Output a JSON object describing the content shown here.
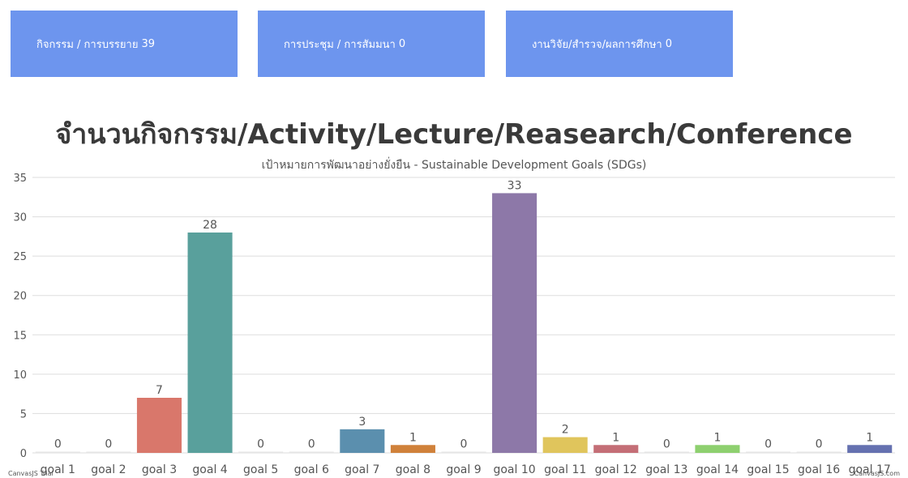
{
  "cards": [
    {
      "label": "กิจกรรม / การบรรยาย",
      "count": "39"
    },
    {
      "label": "การประชุม / การสัมมนา",
      "count": "0"
    },
    {
      "label": "งานวิจัย/สำรวจ/ผลการศึกษา",
      "count": "0"
    }
  ],
  "chart_data": {
    "type": "bar",
    "title": "จำนวนกิจกรรม/Activity/Lecture/Reasearch/Conference",
    "subtitle": "เป้าหมายการพัฒนาอย่างยั่งยืน - Sustainable Development Goals (SDGs)",
    "categories": [
      "goal 1",
      "goal 2",
      "goal 3",
      "goal 4",
      "goal 5",
      "goal 6",
      "goal 7",
      "goal 8",
      "goal 9",
      "goal 10",
      "goal 11",
      "goal 12",
      "goal 13",
      "goal 14",
      "goal 15",
      "goal 16",
      "goal 17"
    ],
    "values": [
      0,
      0,
      7,
      28,
      0,
      0,
      3,
      1,
      0,
      33,
      2,
      1,
      0,
      1,
      0,
      0,
      1
    ],
    "colors": [
      "#4f81bc",
      "#c0504e",
      "#d9776b",
      "#59a09c",
      "#8fbc61",
      "#d3a94b",
      "#5b8fae",
      "#d0813a",
      "#9bbb59",
      "#8d78a8",
      "#e0c55c",
      "#c46e76",
      "#7aa7d6",
      "#8ed06f",
      "#7ec2c6",
      "#c9a2c9",
      "#6571b0"
    ],
    "yticks": [
      0,
      5,
      10,
      15,
      20,
      25,
      30,
      35
    ],
    "ylim": [
      0,
      35
    ],
    "grid": true,
    "xlabel": "",
    "ylabel": ""
  },
  "watermark": {
    "left": "CanvasJS Trial",
    "right": "CanvasJS.com"
  }
}
